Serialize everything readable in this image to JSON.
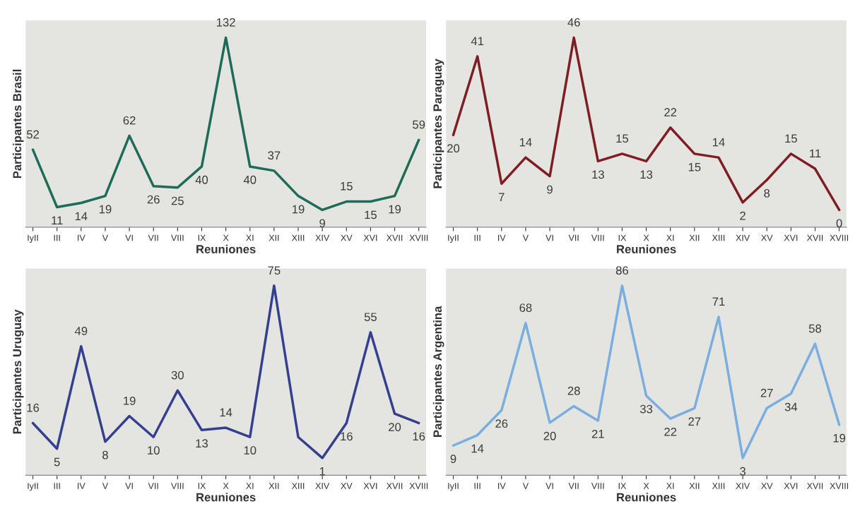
{
  "chart_data": [
    {
      "type": "line",
      "xlabel": "Reuniones",
      "ylabel": "Participantes Brasil",
      "categories": [
        "IyII",
        "III",
        "IV",
        "V",
        "VI",
        "VII",
        "VIII",
        "IX",
        "X",
        "XI",
        "XII",
        "XIII",
        "XIV",
        "XV",
        "XVI",
        "XVII",
        "XVIII"
      ],
      "series": [
        {
          "color": "#1e6b5a",
          "values": [
            52,
            11,
            14,
            19,
            62,
            26,
            25,
            40,
            132,
            40,
            37,
            19,
            9,
            15,
            15,
            19,
            59
          ]
        }
      ],
      "data_labels": true,
      "grid": false,
      "legend": false,
      "marker": "none",
      "tick_labels": "x"
    },
    {
      "type": "line",
      "xlabel": "Reuniones",
      "ylabel": "Participantes Paraguay",
      "categories": [
        "IyII",
        "III",
        "IV",
        "V",
        "VI",
        "VII",
        "VIII",
        "IX",
        "X",
        "XI",
        "XII",
        "XIII",
        "XIV",
        "XV",
        "XVI",
        "XVII",
        "XVIII"
      ],
      "series": [
        {
          "color": "#7f1d24",
          "values": [
            20,
            41,
            7,
            14,
            9,
            46,
            13,
            15,
            13,
            22,
            15,
            14,
            2,
            8,
            15,
            11,
            0
          ]
        }
      ],
      "data_labels": true,
      "grid": false,
      "legend": false,
      "marker": "none",
      "tick_labels": "x"
    },
    {
      "type": "line",
      "xlabel": "Reuniones",
      "ylabel": "Participantes Uruguay",
      "categories": [
        "IyII",
        "III",
        "IV",
        "V",
        "VI",
        "VII",
        "VIII",
        "IX",
        "X",
        "XI",
        "XII",
        "XIII",
        "XIV",
        "XV",
        "XVI",
        "XVII",
        "XVIII"
      ],
      "series": [
        {
          "color": "#353f8f",
          "values": [
            16,
            5,
            49,
            8,
            19,
            10,
            30,
            13,
            14,
            10,
            75,
            10,
            1,
            16,
            55,
            20,
            16
          ],
          "value_labels": [
            "16",
            "5",
            "49",
            "8",
            "19",
            "10",
            "30",
            "13",
            "14",
            "10",
            "75",
            null,
            "1",
            "16",
            "55",
            "20",
            "16"
          ]
        }
      ],
      "grid": false,
      "legend": false,
      "marker": "none",
      "tick_labels": "x"
    },
    {
      "type": "line",
      "xlabel": "Reuniones",
      "ylabel": "Participantes Argentina",
      "categories": [
        "IyII",
        "III",
        "IV",
        "V",
        "VI",
        "VII",
        "VIII",
        "IX",
        "X",
        "XI",
        "XII",
        "XIII",
        "XIV",
        "XV",
        "XVI",
        "XVII",
        "XVIII"
      ],
      "series": [
        {
          "color": "#7aaee0",
          "values": [
            9,
            14,
            26,
            68,
            20,
            28,
            21,
            86,
            33,
            22,
            27,
            71,
            3,
            27,
            34,
            58,
            19
          ]
        }
      ],
      "data_labels": true,
      "grid": false,
      "legend": false,
      "marker": "none",
      "tick_labels": "x"
    }
  ]
}
